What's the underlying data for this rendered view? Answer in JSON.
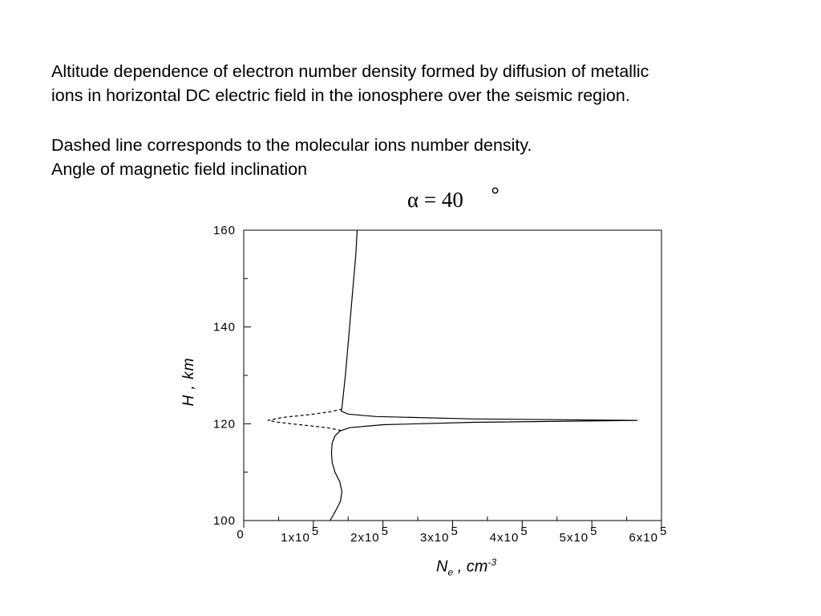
{
  "caption": {
    "line1": "Altitude dependence of electron number density formed by diffusion of metallic",
    "line2": "ions in horizontal DC electric field in the ionosphere over the seismic region.",
    "line3": "Dashed line corresponds to the molecular ions number density.",
    "line4": "Angle of magnetic field inclination"
  },
  "formula": {
    "text": "α = 40",
    "degree": "°"
  },
  "chart_data": {
    "type": "line",
    "xlabel_main": "N",
    "xlabel_sub": "e",
    "xlabel_rest": " , cm",
    "xlabel_sup": "-3",
    "ylabel": "H , km",
    "xlim": [
      0,
      600000
    ],
    "ylim": [
      100,
      160
    ],
    "x_ticks": [
      {
        "value": 0,
        "label": "0",
        "exp": ""
      },
      {
        "value": 100000,
        "label": "1x10",
        "exp": "5"
      },
      {
        "value": 200000,
        "label": "2x10",
        "exp": "5"
      },
      {
        "value": 300000,
        "label": "3x10",
        "exp": "5"
      },
      {
        "value": 400000,
        "label": "4x10",
        "exp": "5"
      },
      {
        "value": 500000,
        "label": "5x10",
        "exp": "5"
      },
      {
        "value": 600000,
        "label": "6x10",
        "exp": "5"
      }
    ],
    "y_ticks": [
      {
        "value": 100,
        "label": "100"
      },
      {
        "value": 120,
        "label": "120"
      },
      {
        "value": 140,
        "label": "140"
      },
      {
        "value": 160,
        "label": "160"
      }
    ],
    "series": [
      {
        "style": "solid",
        "points": [
          [
            124000,
            100
          ],
          [
            132000,
            102
          ],
          [
            139000,
            104
          ],
          [
            141000,
            106
          ],
          [
            138000,
            108
          ],
          [
            131000,
            110
          ],
          [
            127000,
            112
          ],
          [
            126000,
            114
          ],
          [
            127000,
            116
          ],
          [
            131000,
            117.5
          ],
          [
            138000,
            118.5
          ],
          [
            152000,
            119.2
          ],
          [
            200000,
            119.8
          ],
          [
            330000,
            120.3
          ],
          [
            565000,
            120.7
          ],
          [
            330000,
            121.0
          ],
          [
            190000,
            121.5
          ],
          [
            150000,
            122.0
          ],
          [
            140000,
            122.6
          ],
          [
            141000,
            123.2
          ],
          [
            143000,
            126
          ],
          [
            146000,
            130
          ],
          [
            149000,
            135
          ],
          [
            152000,
            140
          ],
          [
            155000,
            145
          ],
          [
            158000,
            150
          ],
          [
            161000,
            155
          ],
          [
            163000,
            160
          ]
        ]
      },
      {
        "style": "dashed",
        "points": [
          [
            140000,
            118.6
          ],
          [
            120000,
            119.2
          ],
          [
            80000,
            119.8
          ],
          [
            50000,
            120.3
          ],
          [
            35000,
            120.7
          ],
          [
            55000,
            121.3
          ],
          [
            95000,
            121.9
          ],
          [
            125000,
            122.5
          ],
          [
            140000,
            123.0
          ]
        ]
      }
    ]
  }
}
